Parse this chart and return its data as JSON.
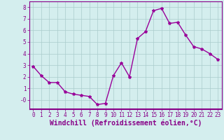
{
  "x": [
    0,
    1,
    2,
    3,
    4,
    5,
    6,
    7,
    8,
    9,
    10,
    11,
    12,
    13,
    14,
    15,
    16,
    17,
    18,
    19,
    20,
    21,
    22,
    23
  ],
  "y": [
    2.9,
    2.1,
    1.5,
    1.5,
    0.7,
    0.5,
    0.4,
    0.3,
    -0.4,
    -0.3,
    2.1,
    3.2,
    2.0,
    5.3,
    5.9,
    7.7,
    7.9,
    6.6,
    6.7,
    5.6,
    4.6,
    4.4,
    4.0,
    3.5
  ],
  "line_color": "#990099",
  "marker": "*",
  "marker_size": 3,
  "bg_color": "#d4eeee",
  "grid_color": "#aacccc",
  "xlabel": "Windchill (Refroidissement éolien,°C)",
  "xlim": [
    -0.5,
    23.5
  ],
  "ylim": [
    -0.8,
    8.5
  ],
  "ytick_labels": [
    "8",
    "7",
    "6",
    "5",
    "4",
    "3",
    "2",
    "1",
    "-0"
  ],
  "ytick_vals": [
    8,
    7,
    6,
    5,
    4,
    3,
    2,
    1,
    0
  ],
  "xticks": [
    0,
    1,
    2,
    3,
    4,
    5,
    6,
    7,
    8,
    9,
    10,
    11,
    12,
    13,
    14,
    15,
    16,
    17,
    18,
    19,
    20,
    21,
    22,
    23
  ],
  "tick_color": "#880088",
  "spine_color": "#880088",
  "tick_fontsize": 5.5,
  "xlabel_fontsize": 7,
  "line_width": 1.0,
  "purple_bar_color": "#880088"
}
